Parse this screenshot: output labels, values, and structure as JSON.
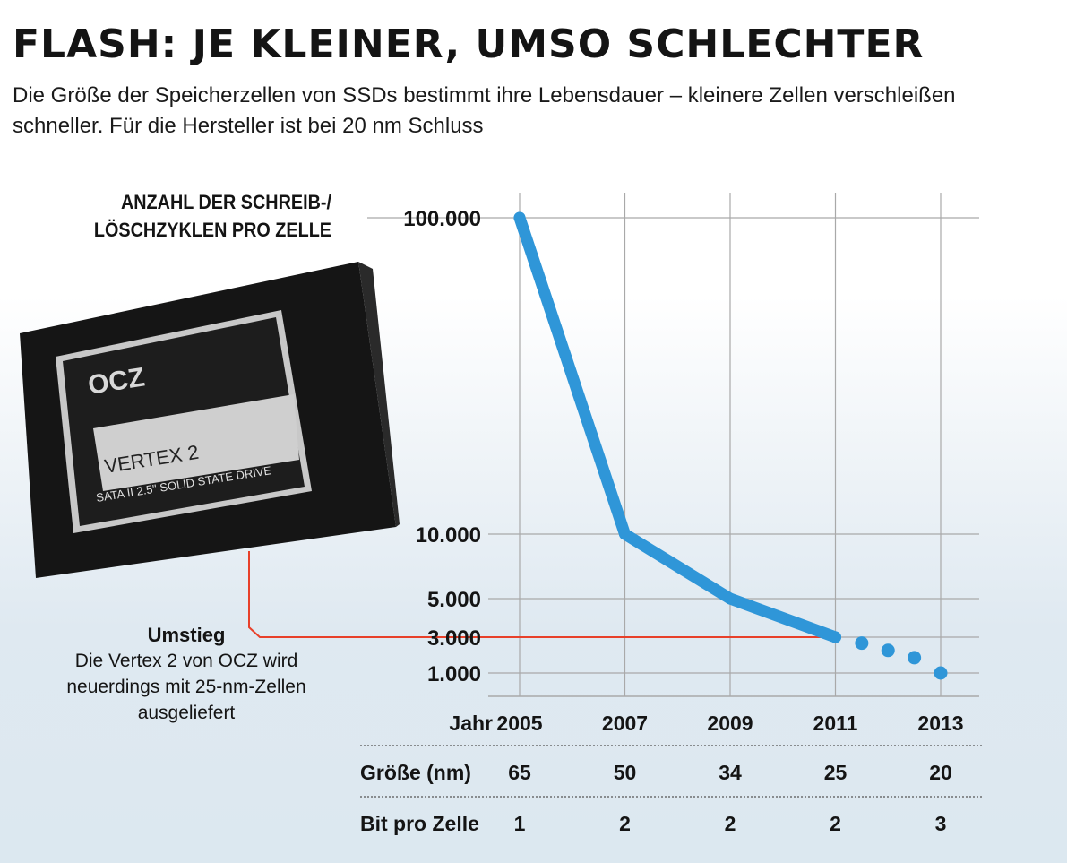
{
  "headline": "FLASH: JE KLEINER, UMSO SCHLECHTER",
  "lead": "Die Größe der Speicherzellen von SSDs bestimmt ihre Lebensdauer – kleinere Zellen verschleißen schneller. Für die Hersteller ist bei 20 nm Schluss",
  "product_image": {
    "brand": "OCZ",
    "model": "VERTEX 2",
    "subline": "SATA II 2.5\" SOLID STATE DRIVE"
  },
  "annotation": {
    "title": "Umstieg",
    "text": "Die Vertex 2 von OCZ wird neuerdings mit 25-nm-Zellen ausgeliefert"
  },
  "colors": {
    "line": "#2f96d8",
    "highlight": "#e8402a",
    "grid": "#a9a9a9",
    "text": "#141414"
  },
  "chart_data": {
    "type": "line",
    "ylabel": "ANZAHL DER SCHREIB-/ LÖSCHZYKLEN PRO ZELLE",
    "yscale": "log",
    "y_ticks": [
      {
        "value": 100000,
        "label": "100.000"
      },
      {
        "value": 10000,
        "label": "10.000"
      },
      {
        "value": 5000,
        "label": "5.000"
      },
      {
        "value": 3000,
        "label": "3.000"
      },
      {
        "value": 1000,
        "label": "1.000"
      }
    ],
    "x_label": "Jahr",
    "x_ticks": [
      "2005",
      "2007",
      "2009",
      "2011",
      "2013"
    ],
    "series": [
      {
        "style": "solid",
        "points": [
          {
            "x": 2005,
            "y": 100000
          },
          {
            "x": 2007,
            "y": 10000
          },
          {
            "x": 2009,
            "y": 5000
          },
          {
            "x": 2011,
            "y": 3000
          }
        ]
      },
      {
        "style": "dotted",
        "points": [
          {
            "x": 2011.5,
            "y": 2500
          },
          {
            "x": 2012,
            "y": 2000
          },
          {
            "x": 2012.5,
            "y": 1600
          },
          {
            "x": 2013,
            "y": 1000
          }
        ]
      }
    ],
    "highlight": {
      "x": 2011,
      "y": 3000
    },
    "table": [
      {
        "label": "Größe (nm)",
        "values": [
          "65",
          "50",
          "34",
          "25",
          "20"
        ]
      },
      {
        "label": "Bit pro Zelle",
        "values": [
          "1",
          "2",
          "2",
          "2",
          "3"
        ]
      }
    ]
  }
}
